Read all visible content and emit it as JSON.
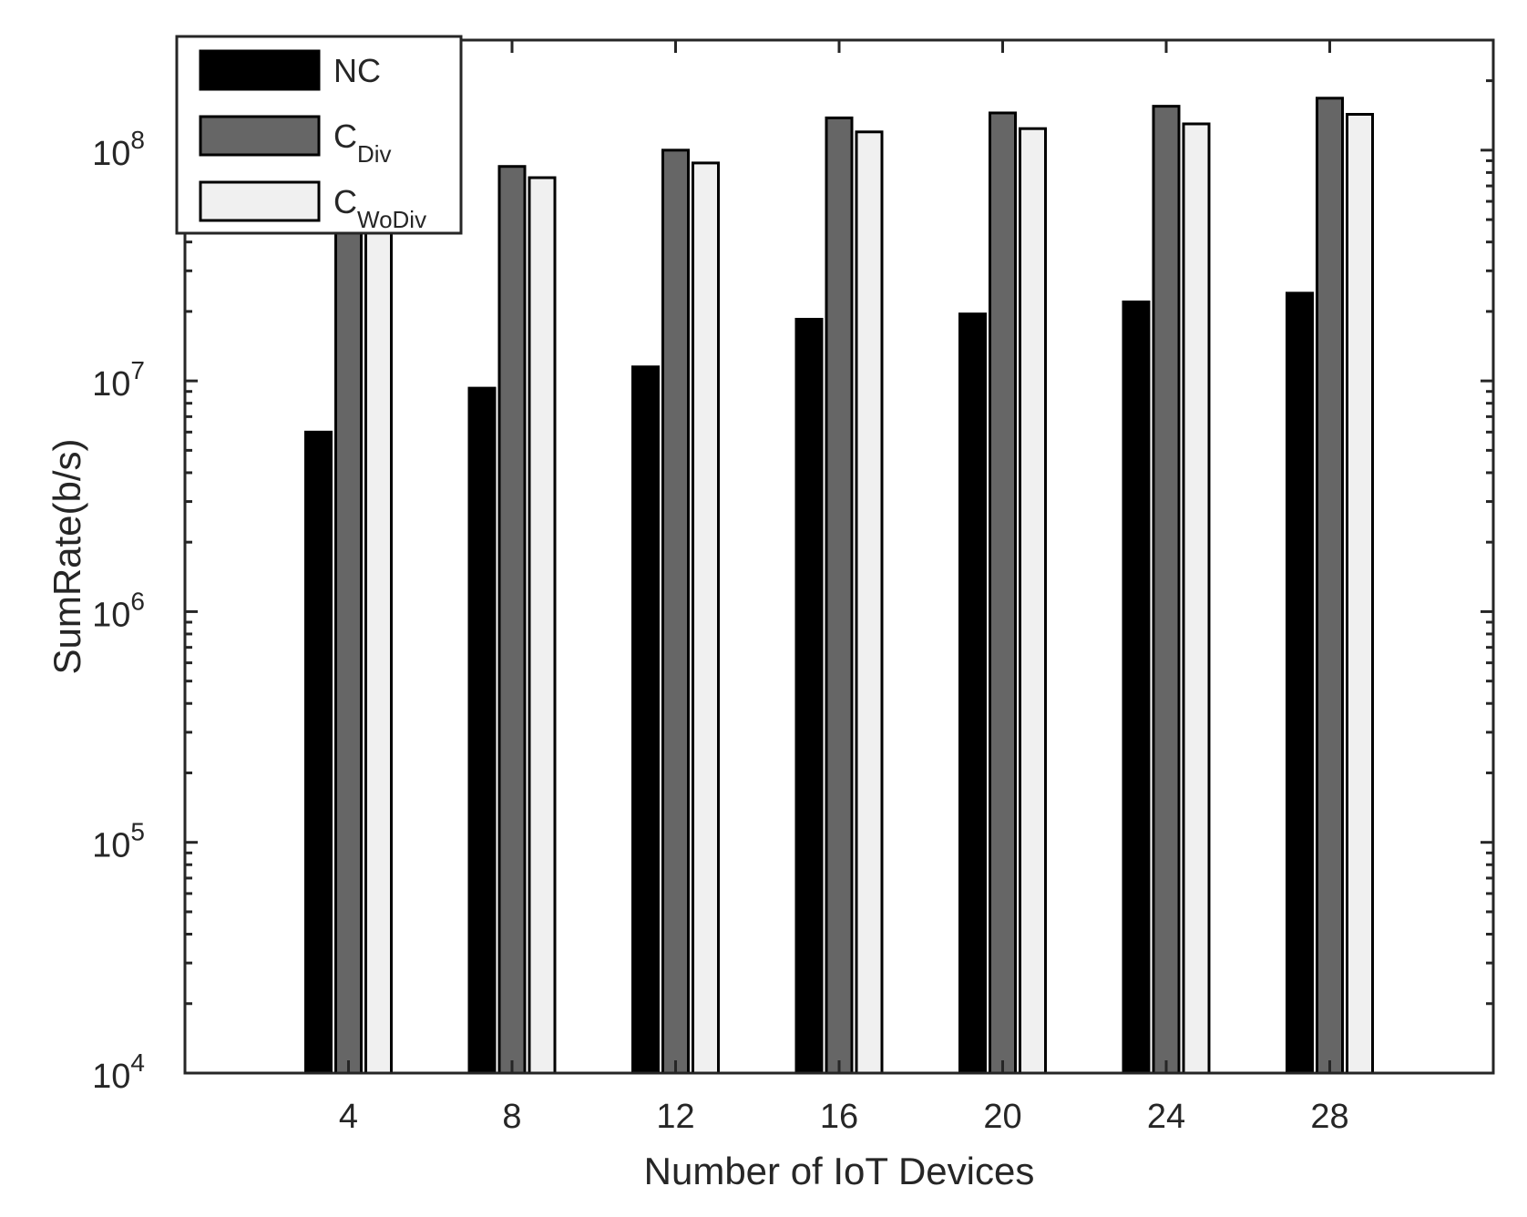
{
  "chart_data": {
    "type": "bar",
    "title": "",
    "xlabel": "Number of IoT Devices",
    "ylabel": "SumRate(b/s)",
    "yscale": "log",
    "ylim": [
      10000,
      300000000
    ],
    "y_ticks": [
      {
        "value": 10000,
        "base": "10",
        "exp": "4"
      },
      {
        "value": 100000,
        "base": "10",
        "exp": "5"
      },
      {
        "value": 1000000,
        "base": "10",
        "exp": "6"
      },
      {
        "value": 10000000,
        "base": "10",
        "exp": "7"
      },
      {
        "value": 100000000,
        "base": "10",
        "exp": "8"
      }
    ],
    "categories": [
      "4",
      "8",
      "12",
      "16",
      "20",
      "24",
      "28"
    ],
    "grid": false,
    "legend": {
      "placement": "top-left"
    },
    "series": [
      {
        "name": "NC",
        "name_main": "NC",
        "name_sub": "",
        "color": "#000000",
        "values": [
          6000000,
          9300000,
          11500000,
          18500000,
          19500000,
          22000000,
          24000000
        ]
      },
      {
        "name": "C_Div",
        "name_main": "C",
        "name_sub": "Div",
        "color": "#666666",
        "values": [
          50000000,
          85000000,
          100000000,
          138000000,
          145000000,
          155000000,
          168000000
        ]
      },
      {
        "name": "C_WoDiv",
        "name_main": "C",
        "name_sub": "WoDiv",
        "color": "#f0f0f0",
        "values": [
          45000000,
          76000000,
          88000000,
          120000000,
          124000000,
          130000000,
          143000000
        ]
      }
    ]
  }
}
